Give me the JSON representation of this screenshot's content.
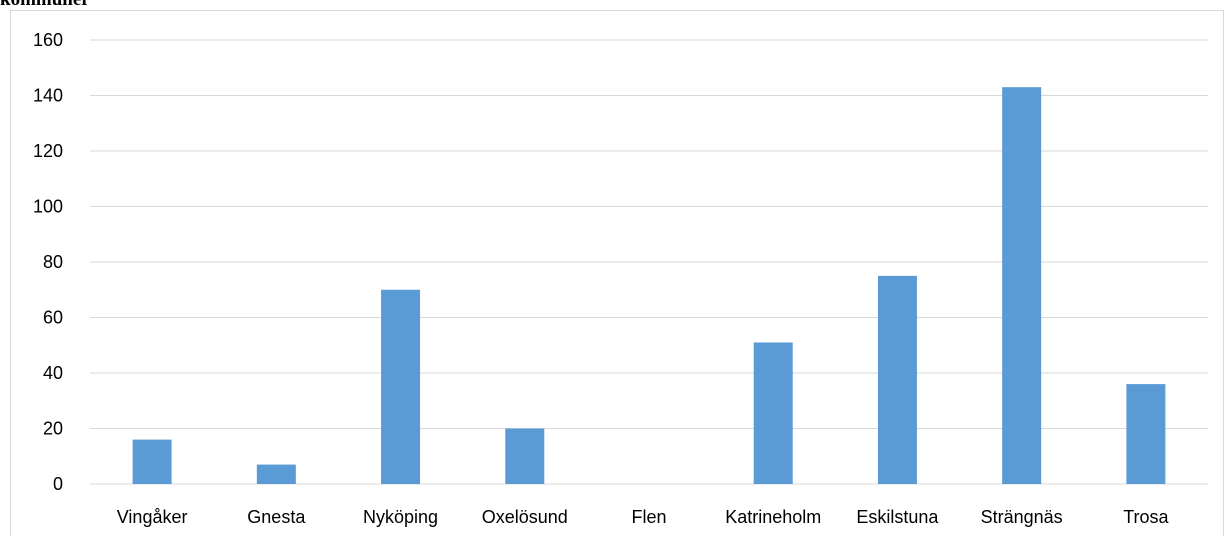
{
  "caption": "kommuner",
  "chart_data": {
    "type": "bar",
    "title": "",
    "xlabel": "",
    "ylabel": "",
    "categories": [
      "Vingåker",
      "Gnesta",
      "Nyköping",
      "Oxelösund",
      "Flen",
      "Katrineholm",
      "Eskilstuna",
      "Strängnäs",
      "Trosa"
    ],
    "values": [
      16,
      7,
      70,
      20,
      0,
      51,
      75,
      143,
      36
    ],
    "ylim": [
      0,
      160
    ],
    "yticks": [
      0,
      20,
      40,
      60,
      80,
      100,
      120,
      140,
      160
    ],
    "grid": true,
    "legend": "none",
    "bar_color": "#5b9bd5",
    "grid_color": "#d9d9d9"
  }
}
